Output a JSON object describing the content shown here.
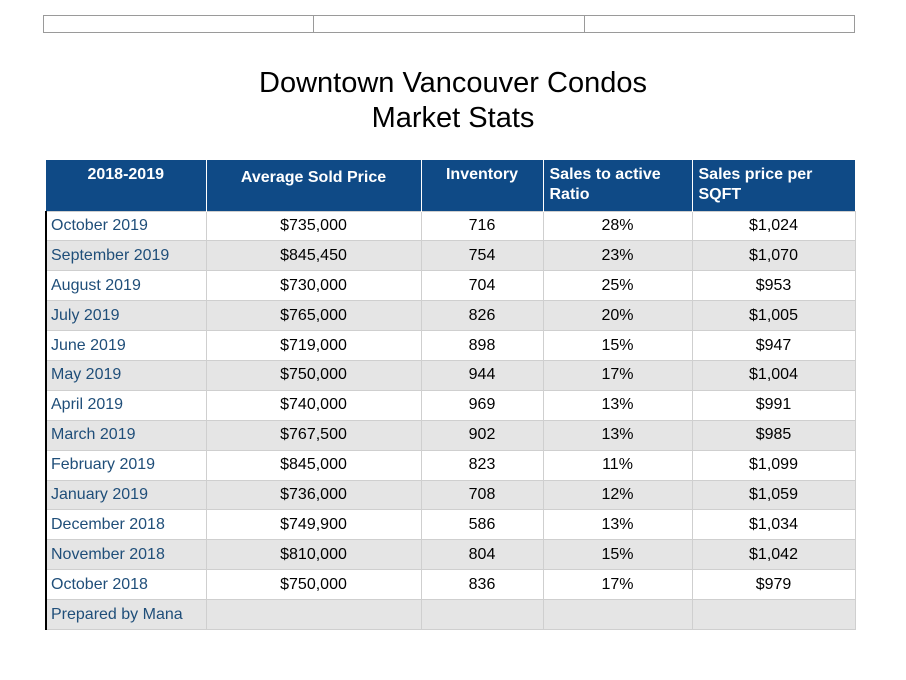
{
  "title_line1": "Downtown Vancouver Condos",
  "title_line2": "Market Stats",
  "table": {
    "headers": {
      "period": "2018-2019",
      "avg_price": "Average Sold Price",
      "inventory": "Inventory",
      "ratio": "Sales to active Ratio",
      "sqft": "Sales price per SQFT"
    },
    "rows": [
      {
        "month": "October 2019",
        "avg_price": "$735,000",
        "inventory": "716",
        "ratio": "28%",
        "sqft": "$1,024"
      },
      {
        "month": "September 2019",
        "avg_price": "$845,450",
        "inventory": "754",
        "ratio": "23%",
        "sqft": "$1,070"
      },
      {
        "month": "August 2019",
        "avg_price": "$730,000",
        "inventory": "704",
        "ratio": "25%",
        "sqft": "$953"
      },
      {
        "month": "July 2019",
        "avg_price": "$765,000",
        "inventory": "826",
        "ratio": "20%",
        "sqft": "$1,005"
      },
      {
        "month": "June 2019",
        "avg_price": "$719,000",
        "inventory": "898",
        "ratio": "15%",
        "sqft": "$947"
      },
      {
        "month": "May 2019",
        "avg_price": "$750,000",
        "inventory": "944",
        "ratio": "17%",
        "sqft": "$1,004"
      },
      {
        "month": "April 2019",
        "avg_price": "$740,000",
        "inventory": "969",
        "ratio": "13%",
        "sqft": "$991"
      },
      {
        "month": "March 2019",
        "avg_price": "$767,500",
        "inventory": "902",
        "ratio": "13%",
        "sqft": "$985"
      },
      {
        "month": "February 2019",
        "avg_price": "$845,000",
        "inventory": "823",
        "ratio": "11%",
        "sqft": "$1,099"
      },
      {
        "month": "January 2019",
        "avg_price": "$736,000",
        "inventory": "708",
        "ratio": "12%",
        "sqft": "$1,059"
      },
      {
        "month": "December 2018",
        "avg_price": "$749,900",
        "inventory": "586",
        "ratio": "13%",
        "sqft": "$1,034"
      },
      {
        "month": "November 2018",
        "avg_price": "$810,000",
        "inventory": "804",
        "ratio": "15%",
        "sqft": "$1,042"
      },
      {
        "month": "October 2018",
        "avg_price": "$750,000",
        "inventory": "836",
        "ratio": "17%",
        "sqft": "$979"
      },
      {
        "month": "Prepared by Mana",
        "avg_price": "",
        "inventory": "",
        "ratio": "",
        "sqft": ""
      }
    ]
  },
  "colors": {
    "header_bg": "#0f4a86",
    "header_text": "#ffffff",
    "month_text": "#1f4e79",
    "stripe": "#e5e5e5"
  }
}
